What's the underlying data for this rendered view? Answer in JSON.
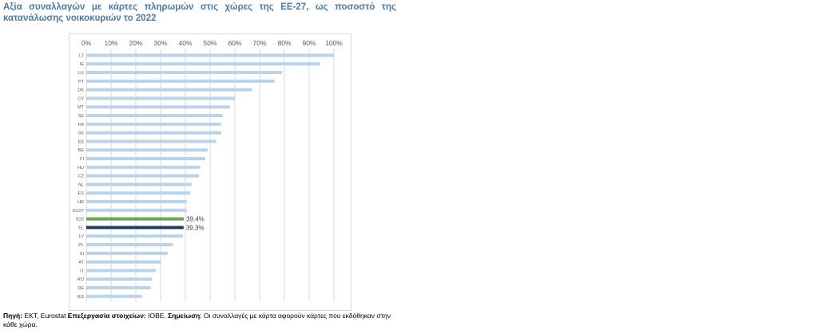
{
  "title": "Αξία συναλλαγών με κάρτες πληρωμών στις χώρες της ΕΕ-27, ως ποσοστό της κατανάλωσης νοικοκυριών το 2022",
  "footer": {
    "source_label": "Πηγή:",
    "source_text": " ΕΚΤ, Eurostat ",
    "processing_label": "Επεξεργασία στοιχείων:",
    "processing_text": " ΙΟΒΕ. ",
    "note_label": "Σημείωση",
    "note_text": ": Οι συναλλαγές με κάρτα αφορούν κάρτες που εκδόθηκαν στην κάθε χώρα."
  },
  "colors": {
    "default_bar": "#b8d3ec",
    "e20_bar": "#6aa84f",
    "el_bar": "#1f3f66",
    "grid": "#d9d9d9",
    "axis_text": "#595959",
    "title": "#4a7ab3"
  },
  "chart_data": {
    "type": "bar",
    "orientation": "horizontal",
    "xlim": [
      0,
      100
    ],
    "x_ticks": [
      "0%",
      "10%",
      "20%",
      "30%",
      "40%",
      "50%",
      "60%",
      "70%",
      "80%",
      "90%",
      "100%"
    ],
    "grid": true,
    "categories": [
      "LT",
      "IE",
      "LU",
      "PT",
      "DK",
      "CY",
      "MT",
      "SE",
      "FR",
      "SK",
      "EE",
      "BE",
      "FI",
      "HU",
      "CZ",
      "NL",
      "ES",
      "HR",
      "EU27",
      "E20",
      "EL",
      "LV",
      "PL",
      "SI",
      "AT",
      "IT",
      "RO",
      "DE",
      "BG"
    ],
    "values": [
      100,
      94.5,
      79,
      76,
      67,
      60,
      58,
      55,
      54.5,
      54.5,
      52.5,
      49,
      48,
      46,
      45.5,
      42.5,
      42,
      40.5,
      40.5,
      39.4,
      39.3,
      39,
      35,
      33,
      30,
      28,
      26.5,
      26,
      22.5
    ],
    "data_labels": [
      {
        "category": "E20",
        "text": "39,4%"
      },
      {
        "category": "EL",
        "text": "39,3%"
      }
    ],
    "highlights": {
      "E20": "e20_bar",
      "EL": "el_bar"
    }
  }
}
